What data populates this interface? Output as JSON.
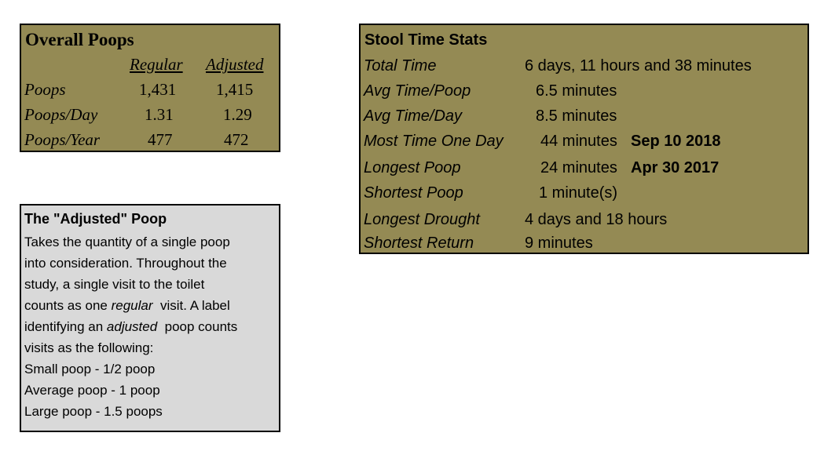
{
  "overall": {
    "title": "Overall Poops",
    "columns": [
      "Regular",
      "Adjusted"
    ],
    "rows": [
      {
        "label": "Poops",
        "values": [
          "1,431",
          "1,415"
        ]
      },
      {
        "label": "Poops/Day",
        "values": [
          "1.31",
          "1.29"
        ]
      },
      {
        "label": "Poops/Year",
        "values": [
          "477",
          "472"
        ]
      }
    ]
  },
  "note": {
    "title": "The \"Adjusted\" Poop",
    "lines": [
      [
        "Takes the quantity of a single poop"
      ],
      [
        "into consideration. Throughout the"
      ],
      [
        "study, a single visit to the toilet"
      ],
      [
        "counts as one ",
        "regular",
        "  visit. A label"
      ],
      [
        "identifying an ",
        "adjusted",
        "  poop counts"
      ],
      [
        "visits as the following:"
      ],
      [
        "Small poop - 1/2 poop"
      ],
      [
        "Average poop - 1 poop"
      ],
      [
        "Large poop - 1.5 poops"
      ]
    ]
  },
  "stool": {
    "title": "Stool Time Stats",
    "rows": [
      {
        "label": "Total Time",
        "value": "6 days, 11 hours and 38 minutes"
      },
      {
        "label": "Avg Time/Poop",
        "value": "6.5 minutes"
      },
      {
        "label": "Avg Time/Day",
        "value": "8.5 minutes"
      },
      {
        "label": "Most Time One Day",
        "value": "44 minutes",
        "date": "Sep 10 2018"
      },
      {
        "label": "Longest Poop",
        "value": "24 minutes",
        "date": "Apr 30 2017"
      },
      {
        "label": "Shortest Poop",
        "value": "1 minute(s)"
      },
      {
        "label": "Longest Drought",
        "value": "4 days and 18 hours"
      },
      {
        "label": "Shortest Return",
        "value": "9 minutes"
      }
    ]
  }
}
